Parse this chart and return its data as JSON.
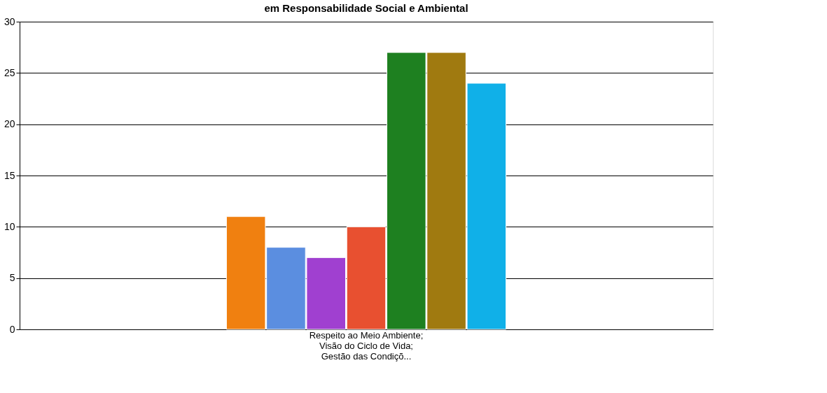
{
  "chart_data": {
    "type": "bar",
    "title": "em  Responsabilidade Social e Ambiental",
    "categories": [
      "Respeito ao Meio Ambiente;\nVisão do Ciclo de Vida;\nGestão das Condiçõ..."
    ],
    "series": [
      {
        "color": "#f08010",
        "values": [
          11
        ]
      },
      {
        "color": "#5b8ee0",
        "values": [
          8
        ]
      },
      {
        "color": "#a040d0",
        "values": [
          7
        ]
      },
      {
        "color": "#e85030",
        "values": [
          10
        ]
      },
      {
        "color": "#1e8020",
        "values": [
          27
        ]
      },
      {
        "color": "#a07a10",
        "values": [
          27
        ]
      },
      {
        "color": "#10b0e8",
        "values": [
          24
        ]
      }
    ],
    "ylim": [
      0,
      30
    ],
    "yticks": [
      0,
      5,
      10,
      15,
      20,
      25,
      30
    ],
    "grid": "y"
  }
}
